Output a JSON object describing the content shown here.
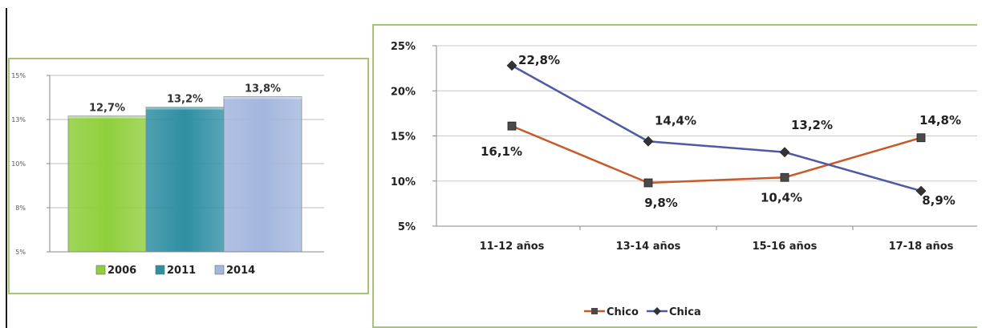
{
  "colors": {
    "panel_border": "#a9c27a",
    "bar_2006": "#8fcf3c",
    "bar_2011": "#2f8fa3",
    "bar_2014": "#a3b6dd",
    "series_chico": "#c8592a",
    "series_chica": "#4e5aa6"
  },
  "chart_data": [
    {
      "type": "bar",
      "categories": [
        "2006",
        "2011",
        "2014"
      ],
      "values": [
        12.7,
        13.2,
        13.8
      ],
      "data_labels": [
        "12,7%",
        "13,2%",
        "13,8%"
      ],
      "y_ticks": [
        "15%",
        "13%",
        "10%",
        "8%",
        "5%"
      ],
      "ylim": [
        5,
        15
      ],
      "legend": [
        "2006",
        "2011",
        "2014"
      ],
      "legend_position": "bottom",
      "grid": true
    },
    {
      "type": "line",
      "categories": [
        "11-12 años",
        "13-14 años",
        "15-16 años",
        "17-18 años"
      ],
      "series": [
        {
          "name": "Chico",
          "values": [
            16.1,
            9.8,
            10.4,
            14.8
          ],
          "labels": [
            "16,1%",
            "9,8%",
            "10,4%",
            "14,8%"
          ],
          "marker": "square"
        },
        {
          "name": "Chica",
          "values": [
            22.8,
            14.4,
            13.2,
            8.9
          ],
          "labels": [
            "22,8%",
            "14,4%",
            "13,2%",
            "8,9%"
          ],
          "marker": "diamond"
        }
      ],
      "y_ticks": [
        "25%",
        "20%",
        "15%",
        "10%",
        "5%"
      ],
      "ylim": [
        5,
        25
      ],
      "legend_position": "bottom",
      "grid": true
    }
  ]
}
